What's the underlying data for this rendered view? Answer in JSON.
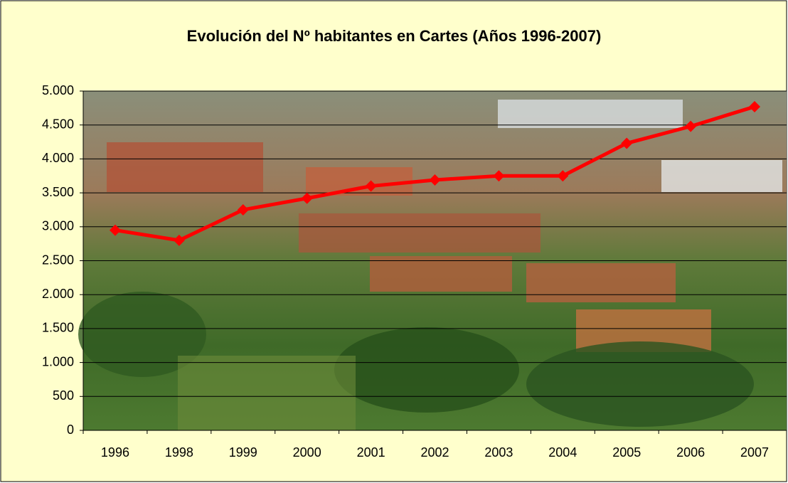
{
  "chart_data": {
    "type": "line",
    "title": "Evolución del Nº habitantes en Cartes (Años 1996-2007)",
    "categories": [
      "1996",
      "1998",
      "1999",
      "2000",
      "2001",
      "2002",
      "2003",
      "2004",
      "2005",
      "2006",
      "2007"
    ],
    "series": [
      {
        "color": "#ff0000",
        "values": [
          2950,
          2800,
          3250,
          3420,
          3600,
          3690,
          3750,
          3750,
          4230,
          4480,
          4770
        ]
      }
    ],
    "ylim": [
      0,
      5000
    ],
    "yticks": [
      0,
      500,
      {
        "value": 1000,
        "label": "1.000"
      },
      {
        "value": 1500,
        "label": "1.500"
      },
      {
        "value": 2000,
        "label": "2.000"
      },
      {
        "value": 2500,
        "label": "2.500"
      },
      {
        "value": 3000,
        "label": "3.000"
      },
      {
        "value": 3500,
        "label": "3.500"
      },
      {
        "value": 4000,
        "label": "4.000"
      },
      {
        "value": 4500,
        "label": "4.500"
      },
      {
        "value": 5000,
        "label": "5.000"
      }
    ],
    "grid": true
  }
}
